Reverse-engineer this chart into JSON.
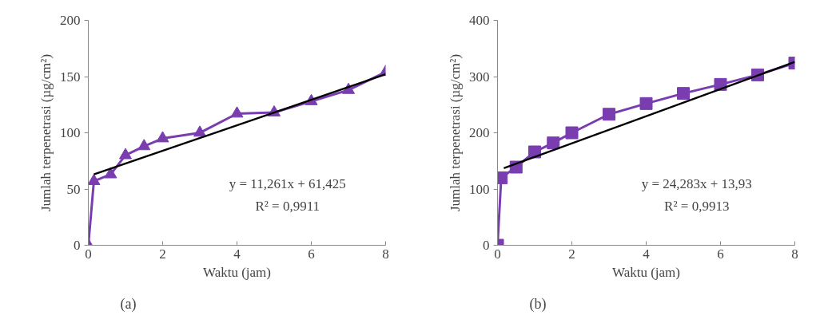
{
  "chart_data": [
    {
      "type": "line",
      "xlabel": "Waktu (jam)",
      "ylabel": "Jumlah terpenetrasi (µg/cm²)",
      "xlim": [
        0,
        8
      ],
      "ylim": [
        0,
        200
      ],
      "xticks": [
        0,
        2,
        4,
        6,
        8
      ],
      "yticks": [
        0,
        50,
        100,
        150,
        200
      ],
      "grid": false,
      "series": [
        {
          "color": "#7a3db0",
          "marker": "triangle",
          "x": [
            0,
            0.15,
            0.6,
            1,
            1.5,
            2,
            3,
            4,
            5,
            6,
            7,
            8
          ],
          "values": [
            0,
            57,
            63,
            80,
            88,
            95,
            100,
            117,
            118,
            128,
            138,
            154
          ]
        },
        {
          "type": "line",
          "color": "#000000",
          "marker": "none",
          "x": [
            0.15,
            8
          ],
          "values": [
            63,
            152
          ]
        }
      ],
      "annotations": [
        "y = 11,261x + 61,425",
        "R² = 0,9911",
        "(a)"
      ]
    },
    {
      "type": "line",
      "xlabel": "Waktu (jam)",
      "ylabel": "Jumlah terpenetrasi (µg/cm²)",
      "xlim": [
        0,
        8
      ],
      "ylim": [
        0,
        400
      ],
      "xticks": [
        0,
        2,
        4,
        6,
        8
      ],
      "yticks": [
        0,
        100,
        200,
        300,
        400
      ],
      "grid": false,
      "series": [
        {
          "color": "#7a3db0",
          "marker": "square",
          "x": [
            0,
            0.1,
            0.5,
            1,
            1.5,
            2,
            3,
            4,
            5,
            6,
            7,
            8
          ],
          "values": [
            0,
            120,
            139,
            166,
            182,
            200,
            233,
            252,
            270,
            286,
            303,
            324
          ]
        },
        {
          "type": "line",
          "color": "#000000",
          "marker": "none",
          "x": [
            0.17,
            8
          ],
          "values": [
            137,
            326
          ]
        }
      ],
      "annotations": [
        "y = 24,283x + 13,93",
        "R² = 0,9913",
        "(b)"
      ]
    }
  ]
}
